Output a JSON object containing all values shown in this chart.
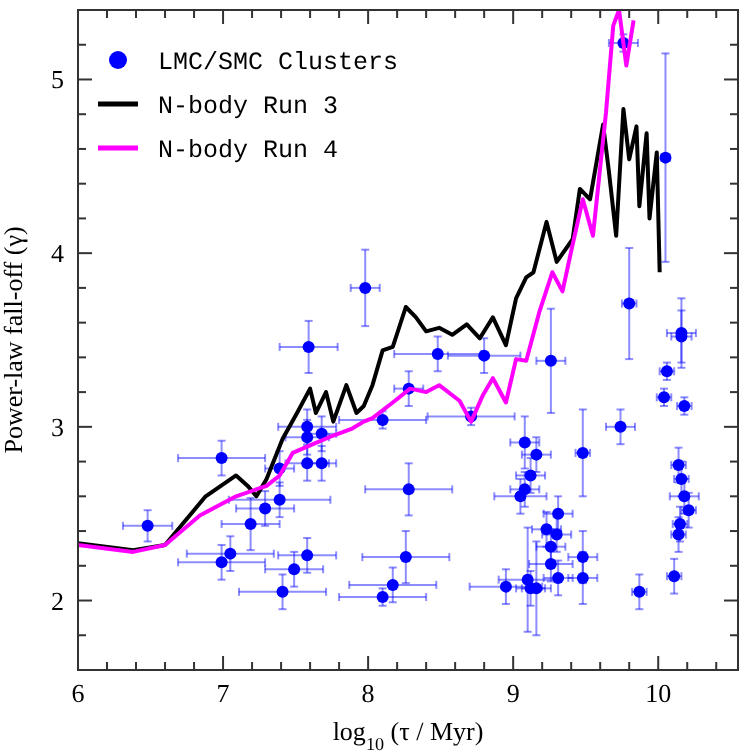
{
  "chart_data": {
    "type": "scatter",
    "xlabel": "log$_{10}$ (τ / Myr)",
    "ylabel": "Power-law fall-off (γ)",
    "xlim": [
      6,
      10.55
    ],
    "ylim": [
      1.6,
      5.4
    ],
    "xticks": [
      6,
      {
        "value": 6.2,
        "label": null
      },
      {
        "value": 6.4,
        "label": null
      },
      {
        "value": 6.6,
        "label": null
      },
      {
        "value": 6.8,
        "label": null
      },
      7,
      {
        "value": 7.2,
        "label": null
      },
      {
        "value": 7.4,
        "label": null
      },
      {
        "value": 7.6,
        "label": null
      },
      {
        "value": 7.8,
        "label": null
      },
      8,
      {
        "value": 8.2,
        "label": null
      },
      {
        "value": 8.4,
        "label": null
      },
      {
        "value": 8.6,
        "label": null
      },
      {
        "value": 8.8,
        "label": null
      },
      9,
      {
        "value": 9.2,
        "label": null
      },
      {
        "value": 9.4,
        "label": null
      },
      {
        "value": 9.6,
        "label": null
      },
      {
        "value": 9.8,
        "label": null
      },
      10,
      {
        "value": 10.2,
        "label": null
      },
      {
        "value": 10.4,
        "label": null
      }
    ],
    "yticks": [
      {
        "value": 1.8,
        "label": null
      },
      2,
      {
        "value": 2.2,
        "label": null
      },
      {
        "value": 2.4,
        "label": null
      },
      {
        "value": 2.6,
        "label": null
      },
      {
        "value": 2.8,
        "label": null
      },
      3,
      {
        "value": 3.2,
        "label": null
      },
      {
        "value": 3.4,
        "label": null
      },
      {
        "value": 3.6,
        "label": null
      },
      {
        "value": 3.8,
        "label": null
      },
      4,
      {
        "value": 4.2,
        "label": null
      },
      {
        "value": 4.4,
        "label": null
      },
      {
        "value": 4.6,
        "label": null
      },
      {
        "value": 4.8,
        "label": null
      },
      5,
      {
        "value": 5.2,
        "label": null
      }
    ],
    "legend": "top left",
    "grid": false,
    "series": [
      {
        "name": "LMC/SMC Clusters",
        "marker": "circle",
        "color": "#0000ff",
        "x": [
          6.48,
          6.99,
          6.99,
          7.05,
          7.19,
          7.29,
          7.39,
          7.39,
          7.41,
          7.49,
          7.58,
          7.58,
          7.58,
          7.58,
          7.68,
          7.68,
          8.1,
          8.1,
          8.17,
          8.28,
          8.28,
          8.26,
          8.71,
          8.95,
          9.05,
          9.08,
          9.08,
          9.1,
          9.12,
          9.12,
          9.16,
          9.16,
          9.23,
          9.26,
          9.26,
          9.3,
          9.31,
          9.31,
          9.48,
          9.48,
          9.48,
          9.74,
          9.87,
          10.04,
          10.06,
          10.18,
          10.14,
          10.16,
          10.18,
          10.21,
          10.15,
          10.14,
          10.11,
          7.59,
          7.98,
          8.48,
          8.8,
          9.26,
          9.8,
          10.05,
          10.16,
          10.16,
          9.76
        ],
        "values": [
          2.43,
          2.82,
          2.22,
          2.27,
          2.44,
          2.53,
          2.58,
          2.76,
          2.05,
          2.18,
          3.0,
          2.94,
          2.79,
          2.26,
          2.79,
          2.96,
          3.04,
          2.02,
          2.09,
          3.22,
          2.64,
          2.25,
          3.06,
          2.08,
          2.6,
          2.91,
          2.64,
          2.12,
          2.72,
          2.07,
          2.84,
          2.07,
          2.41,
          2.31,
          2.21,
          2.38,
          2.5,
          2.13,
          2.85,
          2.25,
          2.13,
          3.0,
          2.05,
          3.17,
          3.32,
          3.12,
          2.78,
          2.7,
          2.6,
          2.52,
          2.44,
          2.38,
          2.14,
          3.46,
          3.8,
          3.42,
          3.41,
          3.38,
          3.71,
          4.55,
          3.54,
          3.52,
          5.21
        ],
        "xerrors": [
          0.17,
          0.3,
          0.3,
          0.3,
          0.2,
          0.2,
          0.35,
          0.1,
          0.3,
          0.2,
          0.2,
          0.15,
          0.15,
          0.2,
          0.1,
          0.1,
          0.3,
          0.3,
          0.3,
          0.1,
          0.3,
          0.3,
          0.3,
          0.25,
          0.18,
          0.1,
          0.1,
          0.2,
          0.1,
          0.1,
          0.1,
          0.1,
          0.1,
          0.1,
          0.15,
          0.1,
          0.1,
          0.1,
          0.05,
          0.1,
          0.1,
          0.1,
          0.05,
          0.05,
          0.05,
          0.05,
          0.05,
          0.05,
          0.1,
          0.05,
          0.05,
          0.05,
          0.05,
          0.2,
          0.1,
          0.3,
          0.25,
          0.1,
          0.05,
          0.03,
          0.1,
          0.07,
          0.1
        ],
        "errors": [
          0.09,
          0.1,
          0.1,
          0.1,
          0.15,
          0.1,
          0.1,
          0.1,
          0.1,
          0.1,
          0.1,
          0.1,
          0.1,
          0.1,
          0.1,
          0.1,
          0.05,
          0.05,
          0.1,
          0.1,
          0.15,
          0.15,
          0.05,
          0.1,
          0.1,
          0.15,
          0.1,
          0.3,
          0.1,
          0.1,
          0.1,
          0.27,
          0.1,
          0.1,
          0.1,
          0.1,
          0.1,
          0.1,
          0.25,
          0.15,
          0.15,
          0.1,
          0.1,
          0.05,
          0.05,
          0.05,
          0.1,
          0.1,
          0.1,
          0.1,
          0.1,
          0.1,
          0.1,
          0.15,
          0.22,
          0.1,
          0.1,
          0.3,
          0.32,
          0.6,
          0.2,
          0.15,
          0.05
        ]
      },
      {
        "name": "N-body Run 3",
        "type": "line",
        "color": "#000000",
        "line_style": "solid",
        "x": [
          6,
          6.38,
          6.6,
          6.88,
          7.09,
          7.17,
          7.23,
          7.3,
          7.41,
          7.51,
          7.6,
          7.64,
          7.71,
          7.76,
          7.85,
          7.92,
          7.97,
          8.03,
          8.1,
          8.17,
          8.26,
          8.33,
          8.4,
          8.49,
          8.58,
          8.68,
          8.77,
          8.86,
          8.95,
          9.02,
          9.09,
          9.14,
          9.23,
          9.3,
          9.41,
          9.46,
          9.53,
          9.62,
          9.66,
          9.71,
          9.76,
          9.8,
          9.85,
          9.87,
          9.92,
          9.94,
          9.99,
          10.01
        ],
        "values": [
          2.33,
          2.29,
          2.32,
          2.6,
          2.72,
          2.66,
          2.6,
          2.7,
          2.93,
          3.08,
          3.22,
          3.08,
          3.2,
          3.03,
          3.24,
          3.08,
          3.12,
          3.24,
          3.44,
          3.46,
          3.69,
          3.63,
          3.55,
          3.57,
          3.53,
          3.59,
          3.51,
          3.63,
          3.47,
          3.74,
          3.86,
          3.89,
          4.18,
          3.95,
          4.08,
          4.37,
          4.31,
          4.74,
          4.47,
          4.1,
          4.83,
          4.54,
          4.73,
          4.27,
          4.69,
          4.2,
          4.58,
          3.89
        ]
      },
      {
        "name": "N-body Run 4",
        "type": "line",
        "color": "#ff00ff",
        "line_style": "solid",
        "x": [
          6,
          6.38,
          6.6,
          6.84,
          7.09,
          7.3,
          7.39,
          7.48,
          7.62,
          7.76,
          7.89,
          7.97,
          8.03,
          8.17,
          8.29,
          8.4,
          8.49,
          8.63,
          8.71,
          8.79,
          8.86,
          8.95,
          9.02,
          9.09,
          9.18,
          9.27,
          9.34,
          9.41,
          9.48,
          9.55,
          9.64,
          9.69,
          9.73,
          9.78,
          9.83
        ],
        "values": [
          2.32,
          2.28,
          2.32,
          2.49,
          2.6,
          2.66,
          2.72,
          2.85,
          2.9,
          2.95,
          2.99,
          3.03,
          3.05,
          3.14,
          3.22,
          3.2,
          3.24,
          3.15,
          3.03,
          3.18,
          3.28,
          3.14,
          3.39,
          3.38,
          3.66,
          3.89,
          3.78,
          4.05,
          4.31,
          4.1,
          4.81,
          5.31,
          5.4,
          5.08,
          5.34
        ]
      }
    ]
  }
}
